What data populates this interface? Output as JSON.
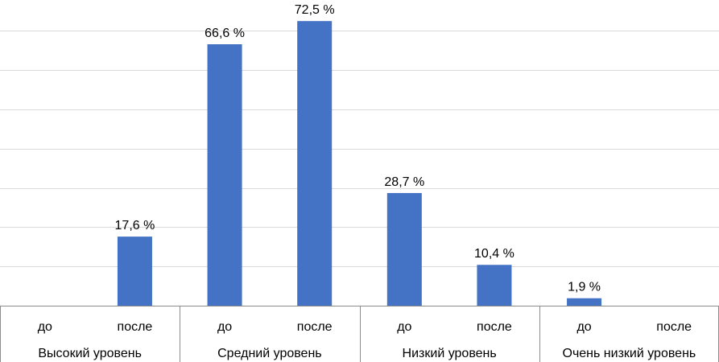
{
  "chart_data": {
    "type": "bar",
    "groups": [
      {
        "label": "Высокий уровень",
        "items": [
          {
            "category": "до",
            "value": null,
            "label": ""
          },
          {
            "category": "после",
            "value": 17.6,
            "label": "17,6 %"
          }
        ]
      },
      {
        "label": "Средний уровень",
        "items": [
          {
            "category": "до",
            "value": 66.6,
            "label": "66,6 %"
          },
          {
            "category": "после",
            "value": 72.5,
            "label": "72,5 %"
          }
        ]
      },
      {
        "label": "Низкий уровень",
        "items": [
          {
            "category": "до",
            "value": 28.7,
            "label": "28,7 %"
          },
          {
            "category": "после",
            "value": 10.4,
            "label": "10,4 %"
          }
        ]
      },
      {
        "label": "Очень низкий уровень",
        "items": [
          {
            "category": "до",
            "value": 1.9,
            "label": "1,9 %"
          },
          {
            "category": "после",
            "value": null,
            "label": ""
          }
        ]
      }
    ],
    "ylim": [
      0,
      70
    ],
    "gridlines": [
      10,
      20,
      30,
      40,
      50,
      60,
      70
    ],
    "grid": true,
    "title": "",
    "xlabel": "",
    "ylabel": "",
    "bar_color": "#4472c4"
  }
}
